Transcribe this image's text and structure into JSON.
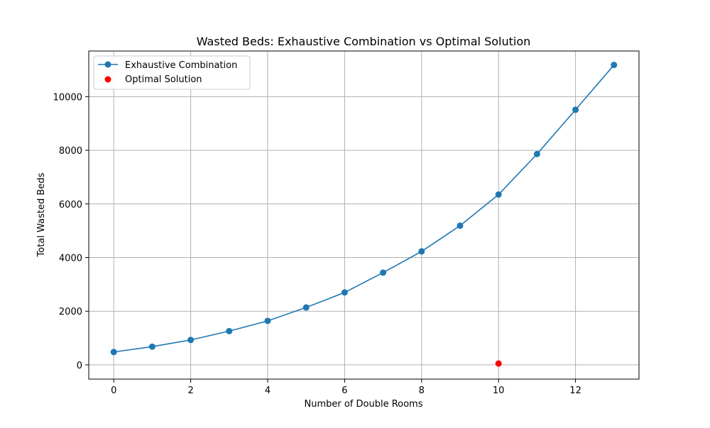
{
  "chart_data": {
    "type": "line",
    "title": "Wasted Beds: Exhaustive Combination vs Optimal Solution",
    "xlabel": "Number of Double Rooms",
    "ylabel": "Total Wasted Beds",
    "xlim": [
      -0.65,
      13.65
    ],
    "ylim": [
      -530,
      11700
    ],
    "x_ticks": [
      0,
      2,
      4,
      6,
      8,
      10,
      12
    ],
    "x_tick_labels": [
      "0",
      "2",
      "4",
      "6",
      "8",
      "10",
      "12"
    ],
    "y_ticks": [
      0,
      2000,
      4000,
      6000,
      8000,
      10000
    ],
    "y_tick_labels": [
      "0",
      "2000",
      "4000",
      "6000",
      "8000",
      "10000"
    ],
    "grid": true,
    "legend_position": "top-left",
    "series": [
      {
        "name": "Exhaustive Combination",
        "kind": "line-marker",
        "color": "#1f77b4",
        "x": [
          0,
          1,
          2,
          3,
          4,
          5,
          6,
          7,
          8,
          9,
          10,
          11,
          12,
          13
        ],
        "y": [
          480,
          680,
          930,
          1260,
          1640,
          2140,
          2700,
          3440,
          4230,
          5190,
          6350,
          7860,
          9510,
          11180
        ]
      },
      {
        "name": "Optimal Solution",
        "kind": "scatter",
        "color": "#ff0000",
        "x": [
          10
        ],
        "y": [
          50
        ]
      }
    ]
  }
}
